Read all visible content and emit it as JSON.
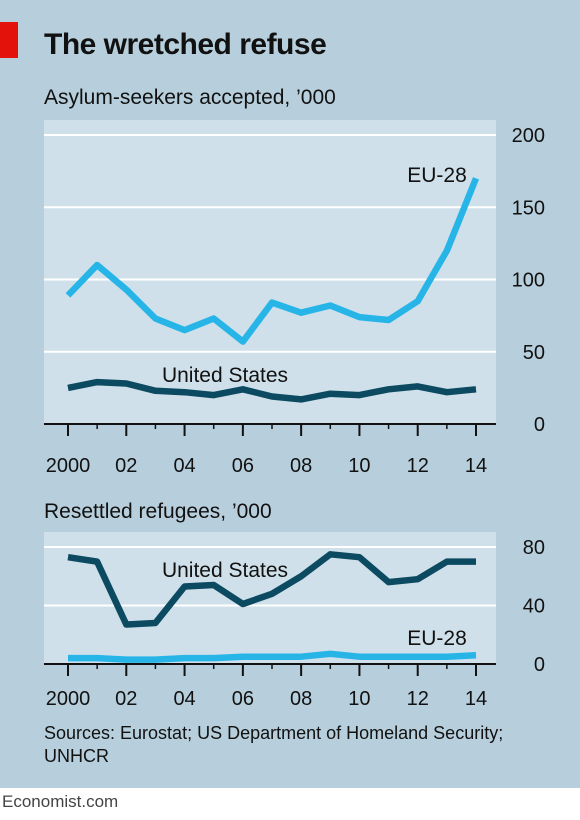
{
  "header": {
    "title": "The wretched refuse",
    "sources": "Sources: Eurostat; US Department of Homeland Security; UNHCR",
    "credit": "Economist.com"
  },
  "colors": {
    "background": "#b7cfdc",
    "plot_background": "#cfe0ea",
    "eu": "#27b5e8",
    "us": "#0c4a61",
    "accent": "#e3120b"
  },
  "chart_data": [
    {
      "type": "line",
      "title": "Asylum-seekers accepted, ’000",
      "x": [
        2000,
        2001,
        2002,
        2003,
        2004,
        2005,
        2006,
        2007,
        2008,
        2009,
        2010,
        2011,
        2012,
        2013,
        2014
      ],
      "x_tick_values": [
        2000,
        2002,
        2004,
        2006,
        2008,
        2010,
        2012,
        2014
      ],
      "x_tick_labels": [
        "2000",
        "02",
        "04",
        "06",
        "08",
        "10",
        "12",
        "14"
      ],
      "ylim": [
        0,
        200
      ],
      "y_ticks": [
        0,
        50,
        100,
        150,
        200
      ],
      "grid": true,
      "series": [
        {
          "name": "EU-28",
          "color": "#27b5e8",
          "values": [
            89,
            110,
            93,
            73,
            65,
            73,
            57,
            84,
            77,
            82,
            74,
            72,
            85,
            120,
            170
          ]
        },
        {
          "name": "United States",
          "color": "#0c4a61",
          "values": [
            25,
            29,
            28,
            23,
            22,
            20,
            24,
            19,
            17,
            21,
            20,
            24,
            26,
            22,
            24
          ]
        }
      ]
    },
    {
      "type": "line",
      "title": "Resettled refugees, ’000",
      "x": [
        2000,
        2001,
        2002,
        2003,
        2004,
        2005,
        2006,
        2007,
        2008,
        2009,
        2010,
        2011,
        2012,
        2013,
        2014
      ],
      "x_tick_values": [
        2000,
        2002,
        2004,
        2006,
        2008,
        2010,
        2012,
        2014
      ],
      "x_tick_labels": [
        "2000",
        "02",
        "04",
        "06",
        "08",
        "10",
        "12",
        "14"
      ],
      "ylim": [
        0,
        80
      ],
      "y_ticks": [
        0,
        40,
        80
      ],
      "grid": true,
      "series": [
        {
          "name": "United States",
          "color": "#0c4a61",
          "values": [
            73,
            70,
            27,
            28,
            53,
            54,
            41,
            48,
            60,
            75,
            73,
            56,
            58,
            70,
            70
          ]
        },
        {
          "name": "EU-28",
          "color": "#27b5e8",
          "values": [
            4,
            4,
            3,
            3,
            4,
            4,
            5,
            5,
            5,
            7,
            5,
            5,
            5,
            5,
            6
          ]
        }
      ]
    }
  ]
}
